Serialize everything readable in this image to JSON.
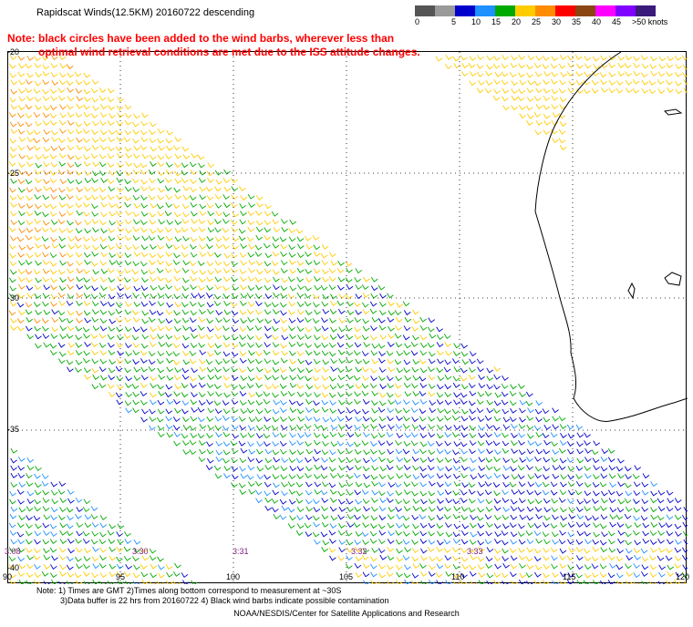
{
  "header": {
    "title": "Rapidscat Winds(12.5KM) 20160722 descending",
    "note_line1": "Note: black circles have been added to the wind barbs, wherever less than",
    "note_line2": "optimal wind retrieval conditions are met due to the ISS attitude changes."
  },
  "scale": {
    "labels": [
      "0",
      "5",
      "10",
      "15",
      "20",
      "25",
      "30",
      "35",
      "40",
      "45",
      ">50 knots"
    ],
    "colors": [
      "#555555",
      "#9a9a9a",
      "#0000cc",
      "#1e90ff",
      "#00aa00",
      "#ffcc00",
      "#ff8c00",
      "#ff0000",
      "#8b4513",
      "#ff00ff",
      "#7f00ff",
      "#3a1a7a"
    ]
  },
  "axes": {
    "lat_labels": [
      "-20",
      "-25",
      "-30",
      "-35",
      "-40"
    ],
    "lon_labels": [
      "90",
      "95",
      "100",
      "105",
      "110",
      "115",
      "120"
    ]
  },
  "times": [
    "3:08",
    "3:30",
    "3:31",
    "3:32",
    "3:33"
  ],
  "footer": {
    "line1": "Note: 1) Times are GMT 2)Times along bottom correspond to measurement at ~30S",
    "line2": "3)Data buffer is 22 hrs from 20160722 4) Black wind barbs indicate possible contamination",
    "credit": "NOAA/NESDIS/Center for Satellite Applications and Research"
  }
}
